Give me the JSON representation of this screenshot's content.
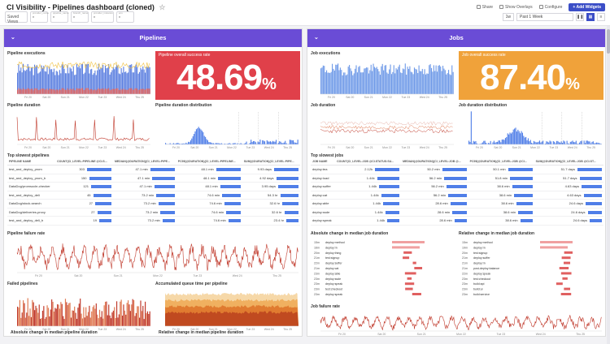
{
  "header": {
    "title": "CI Visibility - Pipelines dashboard (cloned)",
    "saved_views": "Saved Views",
    "vars": [
      {
        "name": "provider_name",
        "value": "*"
      },
      {
        "name": "pipeline_name",
        "value": "*"
      },
      {
        "name": "branch_name",
        "value": "*"
      },
      {
        "name": "provider_instance",
        "value": "*"
      },
      {
        "name": "env",
        "value": "*"
      }
    ],
    "share": "Share",
    "show_overlays": "Show Overlays",
    "configure": "Configure",
    "add_widgets": "+ Add Widgets",
    "time_badge": "1w",
    "time_range": "Past 1 Week"
  },
  "pipelines": {
    "group_title": "Pipelines",
    "executions_title": "Pipeline executions",
    "success_title": "Pipeline overall success rate",
    "success_value": "48.69",
    "success_unit": "%",
    "duration_title": "Pipeline duration",
    "duration_dist_title": "Pipeline duration distribution",
    "slowest_title": "Top slowest pipelines",
    "slowest_cols": [
      "PIPELINE NAME",
      "COUNT(CI_LEVEL:PIPELINE @CI.S...",
      "MEDIAN(@DURATION){CI_LEVEL:PIPE...",
      "PC95(@DURATION){CI_LEVEL:PIPELINE...",
      "SUM(@DURATION){CI_LEVEL:PIPE..."
    ],
    "slowest_rows": [
      [
        "test_and_deploy_prom",
        "303",
        "47.1 min",
        "48.1 min",
        "9.93 days"
      ],
      [
        "test_and_deploy_prom_b",
        "150",
        "47.1 min",
        "48.1 min",
        "4.92 days"
      ],
      [
        "DataDog/promsocle-checker",
        "121",
        "47.1 min",
        "48.1 min",
        "3.95 days"
      ],
      [
        "test_and_deploy_deli",
        "45",
        "73.2 min",
        "74.6 min",
        "54.3 hr"
      ],
      [
        "DataDog/stock-search",
        "27",
        "73.2 min",
        "74.6 min",
        "32.6 hr"
      ],
      [
        "DataDog/deliveries-proxy",
        "27",
        "73.2 min",
        "74.6 min",
        "32.6 hr"
      ],
      [
        "test_and_deploy_deli_b",
        "19",
        "73.2 min",
        "74.6 min",
        "23.4 hr"
      ]
    ],
    "failure_title": "Pipeline failure rate",
    "failed_title": "Failed pipelines",
    "queue_title": "Accumulated queue time per pipeline",
    "abs_change_title": "Absolute change in median pipeline duration",
    "rel_change_title": "Relative change in median pipeline duration"
  },
  "jobs": {
    "group_title": "Jobs",
    "executions_title": "Job executions",
    "success_title": "Job overall success rate",
    "success_value": "87.40",
    "success_unit": "%",
    "duration_title": "Job duration",
    "duration_dist_title": "Job duration distribution",
    "slowest_title": "Top slowest jobs",
    "slowest_cols": [
      "JOB NAME",
      "COUNT(CI_LEVEL:JOB @CI.STATUS:SU...",
      "MEDIAN(@DURATION){CI_LEVEL:JOB @...",
      "PC95(@DURATION){CI_LEVEL:JOB @CI...",
      "SUM(@DURATION){CI_LEVEL:JOB @CI.ST..."
    ],
    "slowest_rows": [
      [
        "deploy:tea",
        "2.12k",
        "50.2 min",
        "50.1 min",
        "51.7 days"
      ],
      [
        "deploy:load",
        "1.44k",
        "56.2 min",
        "51.8 min",
        "51.7 days"
      ],
      [
        "deploy:suffer",
        "1.44k",
        "56.2 min",
        "38.6 min",
        "4.63 days"
      ],
      [
        "deploy:cat",
        "1.44k",
        "56.2 min",
        "38.6 min",
        "4.63 days"
      ],
      [
        "deploy:able",
        "1.44k",
        "28.6 min",
        "38.6 min",
        "24.6 days"
      ],
      [
        "deploy:ssde",
        "1.44k",
        "28.6 min",
        "38.6 min",
        "24.6 days"
      ],
      [
        "deploy:speak",
        "1.44k",
        "28.6 min",
        "38.6 min",
        "24.6 days"
      ]
    ],
    "abs_change_title": "Absolute change in median job duration",
    "rel_change_title": "Relative change in median job duration",
    "abs_rows": [
      [
        "15m",
        "deploy:method"
      ],
      [
        "16m",
        "deploy:rn"
      ],
      [
        "20m",
        "deploy:thing"
      ],
      [
        "21m",
        "test:signup"
      ],
      [
        "22m",
        "deploy:suffer"
      ],
      [
        "21m",
        "deploy:cat"
      ],
      [
        "23m",
        "deploy:able"
      ],
      [
        "23m",
        "deploy:ssde"
      ],
      [
        "23m",
        "deploy:speak"
      ],
      [
        "23m",
        "test:checkout"
      ],
      [
        "23m",
        "deploy:speak"
      ]
    ],
    "rel_rows": [
      [
        "15m",
        "deploy:method"
      ],
      [
        "19m",
        "deploy:rn"
      ],
      [
        "20m",
        "test:signup"
      ],
      [
        "21m",
        "deploy:suffer"
      ],
      [
        "21m",
        "deploy:rn"
      ],
      [
        "21m",
        "post-deploy:balance"
      ],
      [
        "22m",
        "deploy:speak"
      ],
      [
        "23m",
        "test:checkout"
      ],
      [
        "23m",
        "build:api"
      ],
      [
        "23m",
        "build:ui"
      ],
      [
        "23m",
        "build:service"
      ]
    ],
    "failure_title": "Job failure rate"
  },
  "x_ticks": [
    "Fri 20",
    "Sat 20",
    "Sun 21",
    "Mon 22",
    "Tue 23",
    "Wed 24",
    "Thu 25"
  ],
  "colors": {
    "accent": "#3b4ec7",
    "group": "#6a4cd6",
    "red": "#e0404a",
    "orange": "#f0a23a",
    "bar": "#4f7ee8",
    "line": "#c0392b"
  }
}
